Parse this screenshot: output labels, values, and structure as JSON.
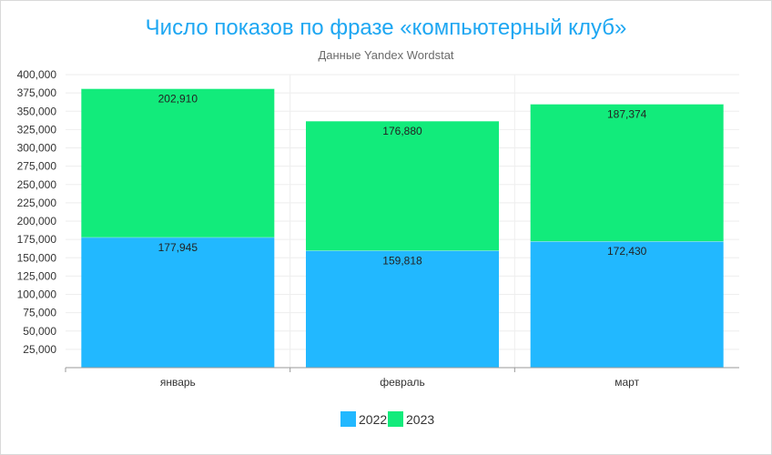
{
  "chart_data": {
    "type": "bar",
    "stacked": true,
    "title": "Число показов по фразе «компьютерный клуб»",
    "subtitle": "Данные Yandex Wordstat",
    "categories": [
      "январь",
      "февраль",
      "март"
    ],
    "series": [
      {
        "name": "2022",
        "values": [
          177945,
          159818,
          172430
        ],
        "color": "#22b8ff",
        "labels": [
          "177,945",
          "159,818",
          "172,430"
        ]
      },
      {
        "name": "2023",
        "values": [
          202910,
          176880,
          187374
        ],
        "color": "#12eb7b",
        "labels": [
          "202,910",
          "176,880",
          "187,374"
        ]
      }
    ],
    "ylim": [
      0,
      400000
    ],
    "yticks": [
      {
        "value": 25000,
        "label": "25,000"
      },
      {
        "value": 50000,
        "label": "50,000"
      },
      {
        "value": 75000,
        "label": "75,000"
      },
      {
        "value": 100000,
        "label": "100,000"
      },
      {
        "value": 125000,
        "label": "125,000"
      },
      {
        "value": 150000,
        "label": "150,000"
      },
      {
        "value": 175000,
        "label": "175,000"
      },
      {
        "value": 200000,
        "label": "200,000"
      },
      {
        "value": 225000,
        "label": "225,000"
      },
      {
        "value": 250000,
        "label": "250,000"
      },
      {
        "value": 275000,
        "label": "275,000"
      },
      {
        "value": 300000,
        "label": "300,000"
      },
      {
        "value": 325000,
        "label": "325,000"
      },
      {
        "value": 350000,
        "label": "350,000"
      },
      {
        "value": 375000,
        "label": "375,000"
      },
      {
        "value": 400000,
        "label": "400,000"
      }
    ],
    "grid": true,
    "legend_position": "bottom"
  }
}
